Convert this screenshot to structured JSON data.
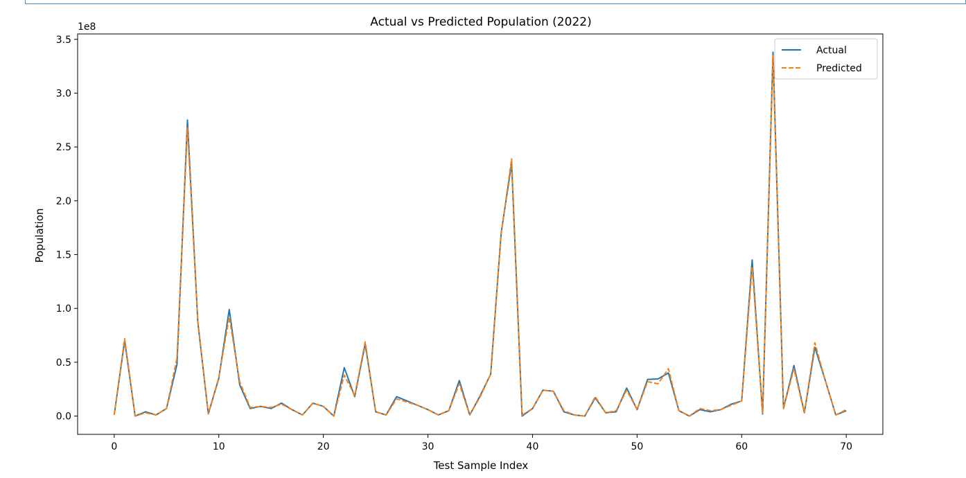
{
  "chart_data": {
    "type": "line",
    "title": "Actual vs Predicted Population (2022)",
    "xlabel": "Test Sample Index",
    "ylabel": "Population",
    "y_offset_label": "1e8",
    "xlim": [
      -3.5,
      73.5
    ],
    "ylim": [
      -0.17,
      3.55
    ],
    "y_scale_note": "values in units of 1e8",
    "xticks": [
      0,
      10,
      20,
      30,
      40,
      50,
      60,
      70
    ],
    "xtick_labels": [
      "0",
      "10",
      "20",
      "30",
      "40",
      "50",
      "60",
      "70"
    ],
    "yticks": [
      0.0,
      0.5,
      1.0,
      1.5,
      2.0,
      2.5,
      3.0,
      3.5
    ],
    "ytick_labels": [
      "0.0",
      "0.5",
      "1.0",
      "1.5",
      "2.0",
      "2.5",
      "3.0",
      "3.5"
    ],
    "legend_position": "upper right",
    "grid": false,
    "x": [
      0,
      1,
      2,
      3,
      4,
      5,
      6,
      7,
      8,
      9,
      10,
      11,
      12,
      13,
      14,
      15,
      16,
      17,
      18,
      19,
      20,
      21,
      22,
      23,
      24,
      25,
      26,
      27,
      28,
      29,
      30,
      31,
      32,
      33,
      34,
      35,
      36,
      37,
      38,
      39,
      40,
      41,
      42,
      43,
      44,
      45,
      46,
      47,
      48,
      49,
      50,
      51,
      52,
      53,
      54,
      55,
      56,
      57,
      58,
      59,
      60,
      61,
      62,
      63,
      64,
      65,
      66,
      67,
      68,
      69,
      70
    ],
    "series": [
      {
        "name": "Actual",
        "color": "#1f77b4",
        "style": "solid",
        "values": [
          0.01,
          0.7,
          0.0,
          0.04,
          0.01,
          0.07,
          0.48,
          2.75,
          0.87,
          0.02,
          0.35,
          0.99,
          0.29,
          0.07,
          0.09,
          0.07,
          0.12,
          0.06,
          0.01,
          0.12,
          0.09,
          0.0,
          0.45,
          0.18,
          0.67,
          0.04,
          0.01,
          0.18,
          0.14,
          0.1,
          0.06,
          0.01,
          0.05,
          0.33,
          0.01,
          0.19,
          0.39,
          1.7,
          2.35,
          0.0,
          0.07,
          0.24,
          0.23,
          0.04,
          0.01,
          0.0,
          0.17,
          0.03,
          0.04,
          0.26,
          0.06,
          0.34,
          0.345,
          0.4,
          0.05,
          0.0,
          0.06,
          0.04,
          0.06,
          0.11,
          0.14,
          1.45,
          0.02,
          3.38,
          0.07,
          0.47,
          0.03,
          0.64,
          0.33,
          0.01,
          0.05
        ]
      },
      {
        "name": "Predicted",
        "color": "#ff7f0e",
        "style": "dashed",
        "values": [
          0.01,
          0.72,
          0.0,
          0.03,
          0.01,
          0.07,
          0.54,
          2.68,
          0.88,
          0.02,
          0.36,
          0.92,
          0.32,
          0.08,
          0.09,
          0.08,
          0.11,
          0.06,
          0.01,
          0.12,
          0.09,
          0.0,
          0.38,
          0.19,
          0.69,
          0.04,
          0.01,
          0.16,
          0.13,
          0.1,
          0.06,
          0.01,
          0.05,
          0.3,
          0.01,
          0.18,
          0.39,
          1.69,
          2.39,
          0.01,
          0.07,
          0.24,
          0.23,
          0.05,
          0.01,
          0.0,
          0.18,
          0.03,
          0.05,
          0.24,
          0.06,
          0.32,
          0.3,
          0.44,
          0.05,
          0.0,
          0.07,
          0.05,
          0.06,
          0.1,
          0.14,
          1.39,
          0.03,
          3.35,
          0.07,
          0.44,
          0.03,
          0.68,
          0.33,
          0.01,
          0.06
        ]
      }
    ]
  }
}
